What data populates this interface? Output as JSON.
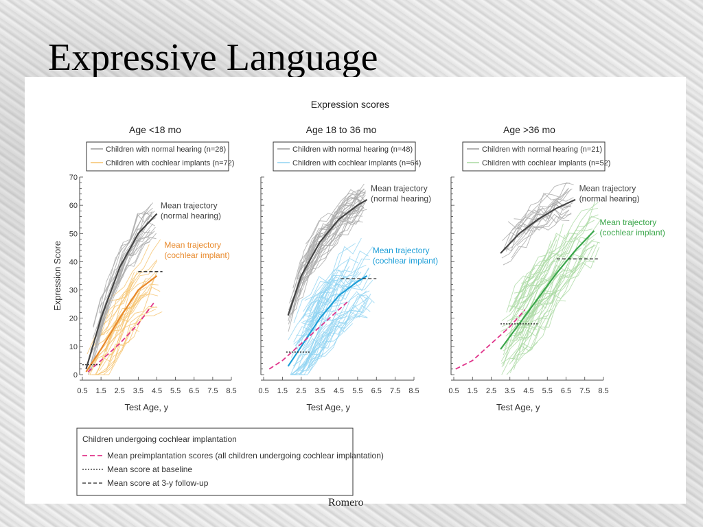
{
  "slide": {
    "title": "Expressive Language",
    "footer": "Romero"
  },
  "figure": {
    "title": "Expression scores"
  },
  "chart_data": [
    {
      "type": "line",
      "panel_title": "Age <18 mo",
      "xlabel": "Test Age, y",
      "ylabel": "Expression Score",
      "xlim": [
        0.5,
        8.5
      ],
      "ylim": [
        0,
        70
      ],
      "xticks": [
        "0.5",
        "1.5",
        "2.5",
        "3.5",
        "4.5",
        "5.5",
        "6.5",
        "7.5",
        "8.5"
      ],
      "yticks": [
        "0",
        "10",
        "20",
        "30",
        "40",
        "50",
        "60",
        "70"
      ],
      "legend": [
        {
          "label": "Children with normal hearing (n=28)",
          "color": "#9a9a9a"
        },
        {
          "label": "Children with cochlear implants (n=72)",
          "color": "#f5c26b"
        }
      ],
      "series": [
        {
          "name": "Mean trajectory (normal hearing)",
          "color": "#444444",
          "x": [
            0.7,
            1.5,
            2.5,
            3.5,
            4.5
          ],
          "y": [
            2,
            20,
            38,
            50,
            57
          ]
        },
        {
          "name": "Mean trajectory (cochlear implant)",
          "color": "#e8892b",
          "x": [
            0.7,
            1.5,
            2.5,
            3.5,
            4.5
          ],
          "y": [
            1,
            9,
            20,
            30,
            35
          ]
        },
        {
          "name": "Mean preimplantation scores",
          "color": "#e0338a",
          "x": [
            0.8,
            1.5,
            2.5,
            3.5,
            4.4
          ],
          "y": [
            1,
            5,
            11,
            18,
            26
          ]
        }
      ],
      "annotations": [
        {
          "text_lines": [
            "Mean trajectory",
            "(normal hearing)"
          ],
          "color": "#444444",
          "x": 4.7,
          "y": 59
        },
        {
          "text_lines": [
            "Mean trajectory",
            "(cochlear implant)"
          ],
          "color": "#e8892b",
          "x": 4.9,
          "y": 45
        }
      ],
      "baseline_mean": {
        "x": [
          0.5,
          1.5
        ],
        "y": 3.5
      },
      "followup_mean": {
        "x": [
          3.5,
          4.8
        ],
        "y": 36.5
      }
    },
    {
      "type": "line",
      "panel_title": "Age 18 to 36 mo",
      "xlabel": "Test Age, y",
      "ylabel": "",
      "xlim": [
        0.5,
        8.5
      ],
      "ylim": [
        0,
        70
      ],
      "xticks": [
        "0.5",
        "1.5",
        "2.5",
        "3.5",
        "4.5",
        "5.5",
        "6.5",
        "7.5",
        "8.5"
      ],
      "yticks": [],
      "legend": [
        {
          "label": "Children with normal hearing (n=48)",
          "color": "#9a9a9a"
        },
        {
          "label": "Children with cochlear implants (n=64)",
          "color": "#8fd3f2"
        }
      ],
      "series": [
        {
          "name": "Mean trajectory (normal hearing)",
          "color": "#444444",
          "x": [
            1.8,
            2.5,
            3.5,
            4.5,
            5.5,
            6.0
          ],
          "y": [
            21,
            35,
            47,
            55,
            60,
            62
          ]
        },
        {
          "name": "Mean trajectory (cochlear implant)",
          "color": "#1f9fd8",
          "x": [
            1.8,
            2.5,
            3.5,
            4.5,
            5.5,
            6.0
          ],
          "y": [
            3,
            10,
            20,
            28,
            33,
            35
          ]
        },
        {
          "name": "Mean preimplantation scores",
          "color": "#e0338a",
          "x": [
            0.8,
            1.5,
            2.5,
            3.5,
            4.5,
            5.0
          ],
          "y": [
            2,
            5,
            11,
            17,
            23,
            26
          ]
        }
      ],
      "annotations": [
        {
          "text_lines": [
            "Mean trajectory",
            "(normal hearing)"
          ],
          "color": "#444444",
          "x": 6.2,
          "y": 65
        },
        {
          "text_lines": [
            "Mean trajectory",
            "(cochlear implant)"
          ],
          "color": "#1f9fd8",
          "x": 6.3,
          "y": 43
        }
      ],
      "baseline_mean": {
        "x": [
          1.7,
          3.0
        ],
        "y": 8
      },
      "followup_mean": {
        "x": [
          4.6,
          6.5
        ],
        "y": 34
      }
    },
    {
      "type": "line",
      "panel_title": "Age >36 mo",
      "xlabel": "Test Age, y",
      "ylabel": "",
      "xlim": [
        0.5,
        8.5
      ],
      "ylim": [
        0,
        70
      ],
      "xticks": [
        "0.5",
        "1.5",
        "2.5",
        "3.5",
        "4.5",
        "5.5",
        "6.5",
        "7.5",
        "8.5"
      ],
      "yticks": [],
      "legend": [
        {
          "label": "Children with normal hearing (n=21)",
          "color": "#9a9a9a"
        },
        {
          "label": "Children with cochlear implants (n=52)",
          "color": "#a8d8a0"
        }
      ],
      "series": [
        {
          "name": "Mean trajectory (normal hearing)",
          "color": "#444444",
          "x": [
            3.0,
            4.0,
            5.0,
            6.0,
            7.0
          ],
          "y": [
            43,
            50,
            55,
            59,
            62
          ]
        },
        {
          "name": "Mean trajectory (cochlear implant)",
          "color": "#3aa64a",
          "x": [
            3.0,
            4.0,
            5.0,
            6.0,
            7.0,
            8.0
          ],
          "y": [
            9,
            18,
            27,
            36,
            44,
            51
          ]
        },
        {
          "name": "Mean preimplantation scores",
          "color": "#e0338a",
          "x": [
            0.6,
            1.5,
            2.5,
            3.5,
            4.3
          ],
          "y": [
            2,
            5,
            11,
            17,
            23
          ]
        }
      ],
      "annotations": [
        {
          "text_lines": [
            "Mean trajectory",
            "(normal hearing)"
          ],
          "color": "#444444",
          "x": 7.2,
          "y": 65
        },
        {
          "text_lines": [
            "Mean trajectory",
            "(cochlear implant)"
          ],
          "color": "#3aa64a",
          "x": 8.3,
          "y": 53
        }
      ],
      "baseline_mean": {
        "x": [
          3.0,
          5.0
        ],
        "y": 18
      },
      "followup_mean": {
        "x": [
          6.0,
          8.2
        ],
        "y": 41
      }
    }
  ],
  "bottom_legend": {
    "title": "Children undergoing cochlear implantation",
    "items": [
      {
        "label": "Mean preimplantation scores (all children undergoing cochlear implantation)",
        "style": "pink-dash"
      },
      {
        "label": "Mean score at baseline",
        "style": "dotted"
      },
      {
        "label": "Mean score at 3-y follow-up",
        "style": "dashed"
      }
    ]
  }
}
